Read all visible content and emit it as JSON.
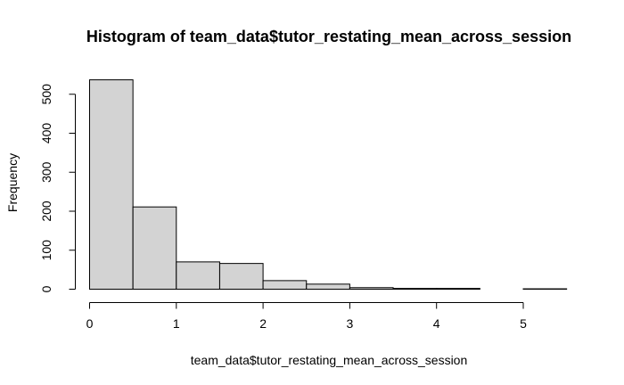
{
  "chart_data": {
    "type": "bar",
    "title": "Histogram of team_data$tutor_restating_mean_across_session",
    "xlabel": "team_data$tutor_restating_mean_across_session",
    "ylabel": "Frequency",
    "bins": [
      {
        "start": 0.0,
        "end": 0.5,
        "count": 537
      },
      {
        "start": 0.5,
        "end": 1.0,
        "count": 211
      },
      {
        "start": 1.0,
        "end": 1.5,
        "count": 70
      },
      {
        "start": 1.5,
        "end": 2.0,
        "count": 66
      },
      {
        "start": 2.0,
        "end": 2.5,
        "count": 22
      },
      {
        "start": 2.5,
        "end": 3.0,
        "count": 13
      },
      {
        "start": 3.0,
        "end": 3.5,
        "count": 4
      },
      {
        "start": 3.5,
        "end": 4.0,
        "count": 2
      },
      {
        "start": 4.0,
        "end": 4.5,
        "count": 2
      },
      {
        "start": 4.5,
        "end": 5.0,
        "count": 0
      },
      {
        "start": 5.0,
        "end": 5.5,
        "count": 1
      }
    ],
    "xlim": [
      0,
      5.5
    ],
    "ylim": [
      0,
      537
    ],
    "xticks": [
      "0",
      "1",
      "2",
      "3",
      "4",
      "5"
    ],
    "yticks": [
      "0",
      "100",
      "200",
      "300",
      "400",
      "500"
    ],
    "bar_fill": "#d3d3d3",
    "bar_stroke": "#000000",
    "grid": false,
    "legend": "none"
  }
}
